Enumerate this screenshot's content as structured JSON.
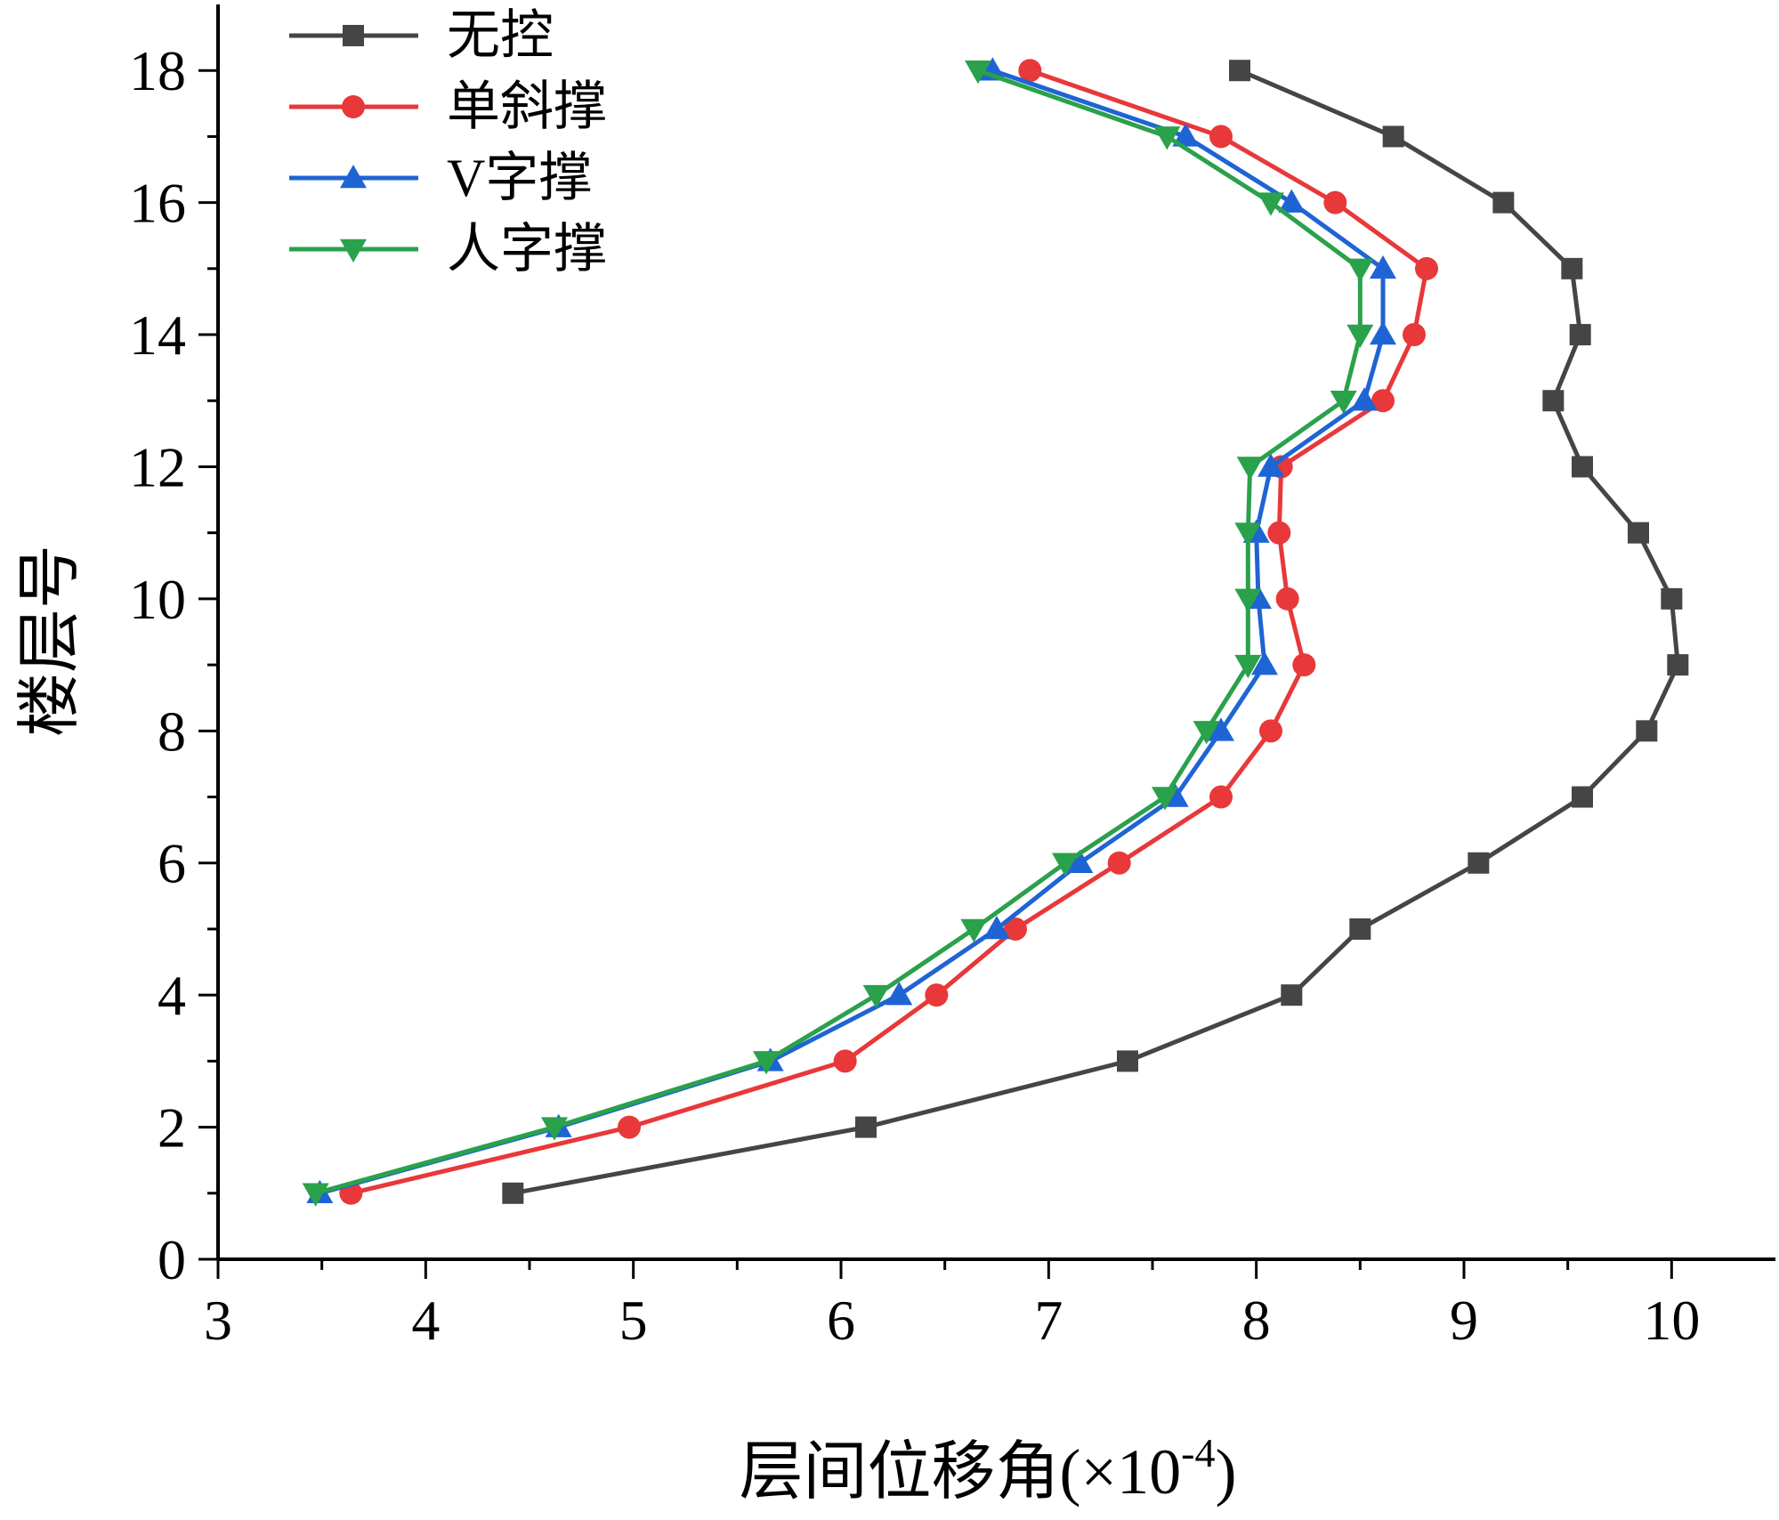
{
  "chart_data": {
    "type": "line",
    "xlabel": "层间位移角(×10",
    "xlabel_exp": "-4",
    "xlabel_close": ")",
    "ylabel": "楼层号",
    "xlim": [
      3,
      10.5
    ],
    "ylim": [
      0,
      19
    ],
    "x_ticks": [
      3,
      4,
      5,
      6,
      7,
      8,
      9,
      10
    ],
    "y_ticks": [
      0,
      2,
      4,
      6,
      8,
      10,
      12,
      14,
      16,
      18
    ],
    "grid": false,
    "legend_position": "top-left",
    "y": [
      1,
      2,
      3,
      4,
      5,
      6,
      7,
      8,
      9,
      10,
      11,
      12,
      13,
      14,
      15,
      16,
      17,
      18
    ],
    "series": [
      {
        "name": "无控",
        "color": "#454545",
        "marker": "square",
        "x": [
          4.42,
          6.12,
          7.38,
          8.17,
          8.5,
          9.07,
          9.57,
          9.88,
          10.03,
          10.0,
          9.84,
          9.57,
          9.43,
          9.56,
          9.52,
          9.19,
          8.66,
          7.92
        ]
      },
      {
        "name": "单斜撑",
        "color": "#e8383a",
        "marker": "circle",
        "x": [
          3.64,
          4.98,
          6.02,
          6.46,
          6.84,
          7.34,
          7.83,
          8.07,
          8.23,
          8.15,
          8.11,
          8.12,
          8.61,
          8.76,
          8.82,
          8.38,
          7.83,
          6.91
        ]
      },
      {
        "name": "V字撑",
        "color": "#1f64d4",
        "marker": "triangle-up",
        "x": [
          3.49,
          4.64,
          5.66,
          6.28,
          6.75,
          7.15,
          7.61,
          7.83,
          8.04,
          8.01,
          8.0,
          8.07,
          8.52,
          8.61,
          8.61,
          8.17,
          7.66,
          6.73
        ]
      },
      {
        "name": "人字撑",
        "color": "#2aa14b",
        "marker": "triangle-down",
        "x": [
          3.47,
          4.62,
          5.64,
          6.17,
          6.64,
          7.08,
          7.56,
          7.76,
          7.96,
          7.96,
          7.96,
          7.97,
          8.42,
          8.5,
          8.5,
          8.07,
          7.57,
          6.66
        ]
      }
    ]
  }
}
